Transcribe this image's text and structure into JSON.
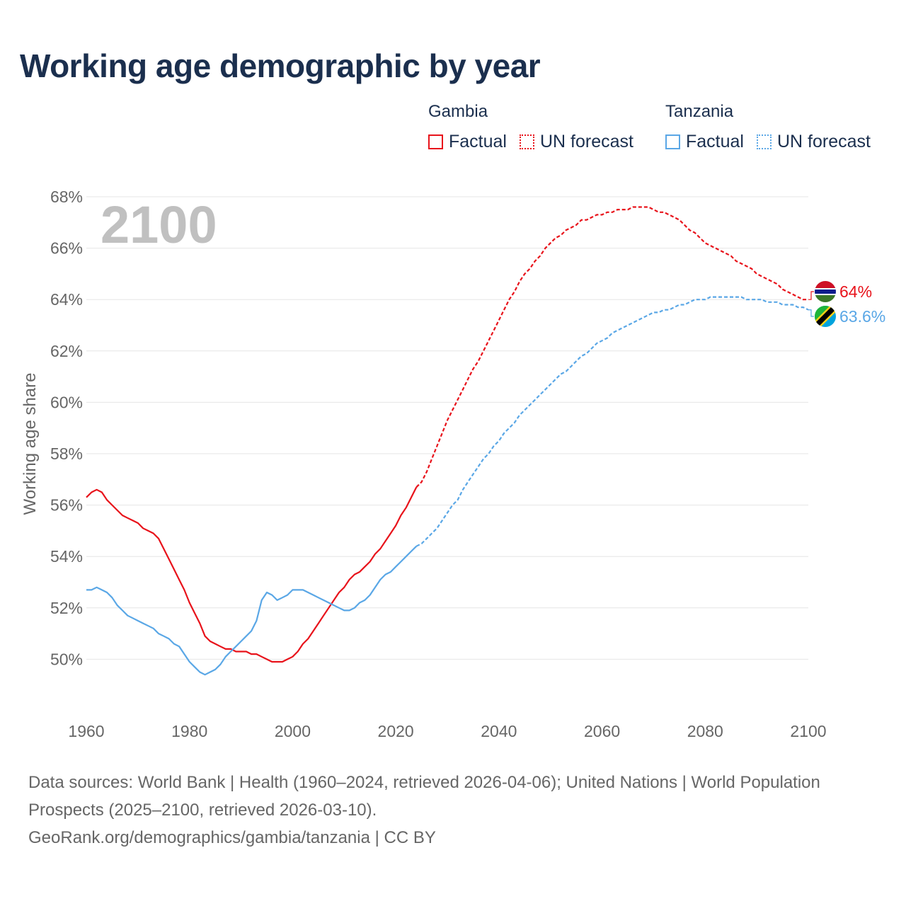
{
  "title": "Working age demographic by year",
  "legend": {
    "groups": [
      {
        "name": "Gambia",
        "factual_label": "Factual",
        "forecast_label": "UN forecast",
        "color": "#e8131b"
      },
      {
        "name": "Tanzania",
        "factual_label": "Factual",
        "forecast_label": "UN forecast",
        "color": "#5aa7e6"
      }
    ]
  },
  "chart_data": {
    "type": "line",
    "title": "Working age demographic by year",
    "xlabel": "",
    "ylabel": "Working age share",
    "year_label": "2100",
    "xlim": [
      1960,
      2100
    ],
    "ylim": [
      48,
      68
    ],
    "x_ticks": [
      1960,
      1980,
      2000,
      2020,
      2040,
      2060,
      2080,
      2100
    ],
    "y_ticks": [
      {
        "value": 50,
        "label": "50%"
      },
      {
        "value": 52,
        "label": "52%"
      },
      {
        "value": 54,
        "label": "54%"
      },
      {
        "value": 56,
        "label": "56%"
      },
      {
        "value": 58,
        "label": "58%"
      },
      {
        "value": 60,
        "label": "60%"
      },
      {
        "value": 62,
        "label": "62%"
      },
      {
        "value": 64,
        "label": "64%"
      },
      {
        "value": 66,
        "label": "66%"
      },
      {
        "value": 68,
        "label": "68%"
      }
    ],
    "grid": true,
    "series": [
      {
        "name": "Gambia",
        "color": "#e8131b",
        "end_label": "64%",
        "factual": [
          [
            1960,
            56.3
          ],
          [
            1961,
            56.5
          ],
          [
            1962,
            56.6
          ],
          [
            1963,
            56.5
          ],
          [
            1964,
            56.2
          ],
          [
            1965,
            56.0
          ],
          [
            1966,
            55.8
          ],
          [
            1967,
            55.6
          ],
          [
            1968,
            55.5
          ],
          [
            1969,
            55.4
          ],
          [
            1970,
            55.3
          ],
          [
            1971,
            55.1
          ],
          [
            1972,
            55.0
          ],
          [
            1973,
            54.9
          ],
          [
            1974,
            54.7
          ],
          [
            1975,
            54.3
          ],
          [
            1976,
            53.9
          ],
          [
            1977,
            53.5
          ],
          [
            1978,
            53.1
          ],
          [
            1979,
            52.7
          ],
          [
            1980,
            52.2
          ],
          [
            1981,
            51.8
          ],
          [
            1982,
            51.4
          ],
          [
            1983,
            50.9
          ],
          [
            1984,
            50.7
          ],
          [
            1985,
            50.6
          ],
          [
            1986,
            50.5
          ],
          [
            1987,
            50.4
          ],
          [
            1988,
            50.4
          ],
          [
            1989,
            50.3
          ],
          [
            1990,
            50.3
          ],
          [
            1991,
            50.3
          ],
          [
            1992,
            50.2
          ],
          [
            1993,
            50.2
          ],
          [
            1994,
            50.1
          ],
          [
            1995,
            50.0
          ],
          [
            1996,
            49.9
          ],
          [
            1997,
            49.9
          ],
          [
            1998,
            49.9
          ],
          [
            1999,
            50.0
          ],
          [
            2000,
            50.1
          ],
          [
            2001,
            50.3
          ],
          [
            2002,
            50.6
          ],
          [
            2003,
            50.8
          ],
          [
            2004,
            51.1
          ],
          [
            2005,
            51.4
          ],
          [
            2006,
            51.7
          ],
          [
            2007,
            52.0
          ],
          [
            2008,
            52.3
          ],
          [
            2009,
            52.6
          ],
          [
            2010,
            52.8
          ],
          [
            2011,
            53.1
          ],
          [
            2012,
            53.3
          ],
          [
            2013,
            53.4
          ],
          [
            2014,
            53.6
          ],
          [
            2015,
            53.8
          ],
          [
            2016,
            54.1
          ],
          [
            2017,
            54.3
          ],
          [
            2018,
            54.6
          ],
          [
            2019,
            54.9
          ],
          [
            2020,
            55.2
          ],
          [
            2021,
            55.6
          ],
          [
            2022,
            55.9
          ],
          [
            2023,
            56.3
          ],
          [
            2024,
            56.7
          ]
        ],
        "forecast": [
          [
            2024,
            56.7
          ],
          [
            2025,
            56.9
          ],
          [
            2026,
            57.3
          ],
          [
            2027,
            57.8
          ],
          [
            2028,
            58.3
          ],
          [
            2029,
            58.8
          ],
          [
            2030,
            59.3
          ],
          [
            2031,
            59.7
          ],
          [
            2032,
            60.1
          ],
          [
            2033,
            60.5
          ],
          [
            2034,
            60.9
          ],
          [
            2035,
            61.3
          ],
          [
            2036,
            61.6
          ],
          [
            2037,
            62.0
          ],
          [
            2038,
            62.4
          ],
          [
            2039,
            62.8
          ],
          [
            2040,
            63.2
          ],
          [
            2041,
            63.6
          ],
          [
            2042,
            64.0
          ],
          [
            2043,
            64.3
          ],
          [
            2044,
            64.7
          ],
          [
            2045,
            65.0
          ],
          [
            2046,
            65.2
          ],
          [
            2047,
            65.5
          ],
          [
            2048,
            65.7
          ],
          [
            2049,
            66.0
          ],
          [
            2050,
            66.2
          ],
          [
            2051,
            66.4
          ],
          [
            2052,
            66.5
          ],
          [
            2053,
            66.7
          ],
          [
            2054,
            66.8
          ],
          [
            2055,
            66.9
          ],
          [
            2056,
            67.1
          ],
          [
            2057,
            67.1
          ],
          [
            2058,
            67.2
          ],
          [
            2059,
            67.3
          ],
          [
            2060,
            67.3
          ],
          [
            2061,
            67.4
          ],
          [
            2062,
            67.4
          ],
          [
            2063,
            67.5
          ],
          [
            2064,
            67.5
          ],
          [
            2065,
            67.5
          ],
          [
            2066,
            67.6
          ],
          [
            2067,
            67.6
          ],
          [
            2068,
            67.6
          ],
          [
            2069,
            67.6
          ],
          [
            2070,
            67.5
          ],
          [
            2071,
            67.4
          ],
          [
            2072,
            67.4
          ],
          [
            2073,
            67.3
          ],
          [
            2074,
            67.2
          ],
          [
            2075,
            67.1
          ],
          [
            2076,
            66.9
          ],
          [
            2077,
            66.7
          ],
          [
            2078,
            66.6
          ],
          [
            2079,
            66.4
          ],
          [
            2080,
            66.2
          ],
          [
            2081,
            66.1
          ],
          [
            2082,
            66.0
          ],
          [
            2083,
            65.9
          ],
          [
            2084,
            65.8
          ],
          [
            2085,
            65.7
          ],
          [
            2086,
            65.5
          ],
          [
            2087,
            65.4
          ],
          [
            2088,
            65.3
          ],
          [
            2089,
            65.2
          ],
          [
            2090,
            65.0
          ],
          [
            2091,
            64.9
          ],
          [
            2092,
            64.8
          ],
          [
            2093,
            64.7
          ],
          [
            2094,
            64.6
          ],
          [
            2095,
            64.4
          ],
          [
            2096,
            64.3
          ],
          [
            2097,
            64.2
          ],
          [
            2098,
            64.1
          ],
          [
            2099,
            64.0
          ],
          [
            2100,
            64.0
          ]
        ]
      },
      {
        "name": "Tanzania",
        "color": "#5aa7e6",
        "end_label": "63.6%",
        "factual": [
          [
            1960,
            52.7
          ],
          [
            1961,
            52.7
          ],
          [
            1962,
            52.8
          ],
          [
            1963,
            52.7
          ],
          [
            1964,
            52.6
          ],
          [
            1965,
            52.4
          ],
          [
            1966,
            52.1
          ],
          [
            1967,
            51.9
          ],
          [
            1968,
            51.7
          ],
          [
            1969,
            51.6
          ],
          [
            1970,
            51.5
          ],
          [
            1971,
            51.4
          ],
          [
            1972,
            51.3
          ],
          [
            1973,
            51.2
          ],
          [
            1974,
            51.0
          ],
          [
            1975,
            50.9
          ],
          [
            1976,
            50.8
          ],
          [
            1977,
            50.6
          ],
          [
            1978,
            50.5
          ],
          [
            1979,
            50.2
          ],
          [
            1980,
            49.9
          ],
          [
            1981,
            49.7
          ],
          [
            1982,
            49.5
          ],
          [
            1983,
            49.4
          ],
          [
            1984,
            49.5
          ],
          [
            1985,
            49.6
          ],
          [
            1986,
            49.8
          ],
          [
            1987,
            50.1
          ],
          [
            1988,
            50.3
          ],
          [
            1989,
            50.5
          ],
          [
            1990,
            50.7
          ],
          [
            1991,
            50.9
          ],
          [
            1992,
            51.1
          ],
          [
            1993,
            51.5
          ],
          [
            1994,
            52.3
          ],
          [
            1995,
            52.6
          ],
          [
            1996,
            52.5
          ],
          [
            1997,
            52.3
          ],
          [
            1998,
            52.4
          ],
          [
            1999,
            52.5
          ],
          [
            2000,
            52.7
          ],
          [
            2001,
            52.7
          ],
          [
            2002,
            52.7
          ],
          [
            2003,
            52.6
          ],
          [
            2004,
            52.5
          ],
          [
            2005,
            52.4
          ],
          [
            2006,
            52.3
          ],
          [
            2007,
            52.2
          ],
          [
            2008,
            52.1
          ],
          [
            2009,
            52.0
          ],
          [
            2010,
            51.9
          ],
          [
            2011,
            51.9
          ],
          [
            2012,
            52.0
          ],
          [
            2013,
            52.2
          ],
          [
            2014,
            52.3
          ],
          [
            2015,
            52.5
          ],
          [
            2016,
            52.8
          ],
          [
            2017,
            53.1
          ],
          [
            2018,
            53.3
          ],
          [
            2019,
            53.4
          ],
          [
            2020,
            53.6
          ],
          [
            2021,
            53.8
          ],
          [
            2022,
            54.0
          ],
          [
            2023,
            54.2
          ],
          [
            2024,
            54.4
          ]
        ],
        "forecast": [
          [
            2024,
            54.4
          ],
          [
            2025,
            54.5
          ],
          [
            2026,
            54.7
          ],
          [
            2027,
            54.9
          ],
          [
            2028,
            55.1
          ],
          [
            2029,
            55.4
          ],
          [
            2030,
            55.7
          ],
          [
            2031,
            56.0
          ],
          [
            2032,
            56.2
          ],
          [
            2033,
            56.6
          ],
          [
            2034,
            56.9
          ],
          [
            2035,
            57.2
          ],
          [
            2036,
            57.5
          ],
          [
            2037,
            57.8
          ],
          [
            2038,
            58.0
          ],
          [
            2039,
            58.3
          ],
          [
            2040,
            58.5
          ],
          [
            2041,
            58.8
          ],
          [
            2042,
            59.0
          ],
          [
            2043,
            59.2
          ],
          [
            2044,
            59.5
          ],
          [
            2045,
            59.7
          ],
          [
            2046,
            59.9
          ],
          [
            2047,
            60.1
          ],
          [
            2048,
            60.3
          ],
          [
            2049,
            60.5
          ],
          [
            2050,
            60.7
          ],
          [
            2051,
            60.9
          ],
          [
            2052,
            61.1
          ],
          [
            2053,
            61.2
          ],
          [
            2054,
            61.4
          ],
          [
            2055,
            61.6
          ],
          [
            2056,
            61.8
          ],
          [
            2057,
            61.9
          ],
          [
            2058,
            62.1
          ],
          [
            2059,
            62.3
          ],
          [
            2060,
            62.4
          ],
          [
            2061,
            62.5
          ],
          [
            2062,
            62.7
          ],
          [
            2063,
            62.8
          ],
          [
            2064,
            62.9
          ],
          [
            2065,
            63.0
          ],
          [
            2066,
            63.1
          ],
          [
            2067,
            63.2
          ],
          [
            2068,
            63.3
          ],
          [
            2069,
            63.4
          ],
          [
            2070,
            63.5
          ],
          [
            2071,
            63.5
          ],
          [
            2072,
            63.6
          ],
          [
            2073,
            63.6
          ],
          [
            2074,
            63.7
          ],
          [
            2075,
            63.8
          ],
          [
            2076,
            63.8
          ],
          [
            2077,
            63.9
          ],
          [
            2078,
            64.0
          ],
          [
            2079,
            64.0
          ],
          [
            2080,
            64.0
          ],
          [
            2081,
            64.1
          ],
          [
            2082,
            64.1
          ],
          [
            2083,
            64.1
          ],
          [
            2084,
            64.1
          ],
          [
            2085,
            64.1
          ],
          [
            2086,
            64.1
          ],
          [
            2087,
            64.1
          ],
          [
            2088,
            64.0
          ],
          [
            2089,
            64.0
          ],
          [
            2090,
            64.0
          ],
          [
            2091,
            64.0
          ],
          [
            2092,
            63.9
          ],
          [
            2093,
            63.9
          ],
          [
            2094,
            63.9
          ],
          [
            2095,
            63.8
          ],
          [
            2096,
            63.8
          ],
          [
            2097,
            63.8
          ],
          [
            2098,
            63.7
          ],
          [
            2099,
            63.7
          ],
          [
            2100,
            63.6
          ]
        ]
      }
    ]
  },
  "footer": {
    "sources": "Data sources: World Bank | Health (1960–2024, retrieved 2026-04-06); United Nations | World Population Prospects (2025–2100, retrieved 2026-03-10).",
    "attribution": "GeoRank.org/demographics/gambia/tanzania | CC BY"
  }
}
